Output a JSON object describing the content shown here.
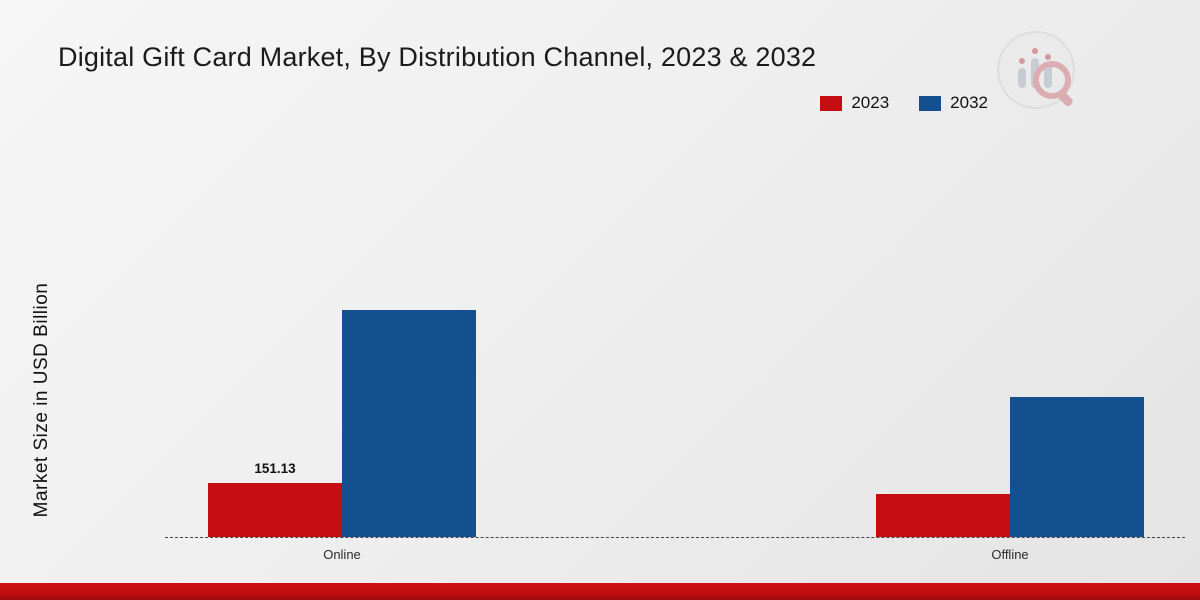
{
  "header": {
    "title": "Digital Gift Card Market, By Distribution Channel, 2023 & 2032"
  },
  "legend": {
    "items": [
      {
        "label": "2023",
        "color": "#c50c10"
      },
      {
        "label": "2032",
        "color": "#14508f"
      }
    ]
  },
  "chart_data": {
    "type": "bar",
    "title": "Digital Gift Card Market, By Distribution Channel, 2023 & 2032",
    "xlabel": "",
    "ylabel": "Market Size in USD Billion",
    "categories": [
      "Online",
      "Offline"
    ],
    "series": [
      {
        "name": "2023",
        "color": "#c50c10",
        "values": [
          151.13,
          120.0
        ]
      },
      {
        "name": "2032",
        "color": "#14508f",
        "values": [
          635.0,
          392.0
        ]
      }
    ],
    "ylim": [
      0,
      700
    ],
    "grid": false,
    "legend_position": "top-right",
    "baseline_style": "dashed",
    "data_labels": [
      {
        "series": "2023",
        "category": "Online",
        "text": "151.13"
      }
    ]
  }
}
